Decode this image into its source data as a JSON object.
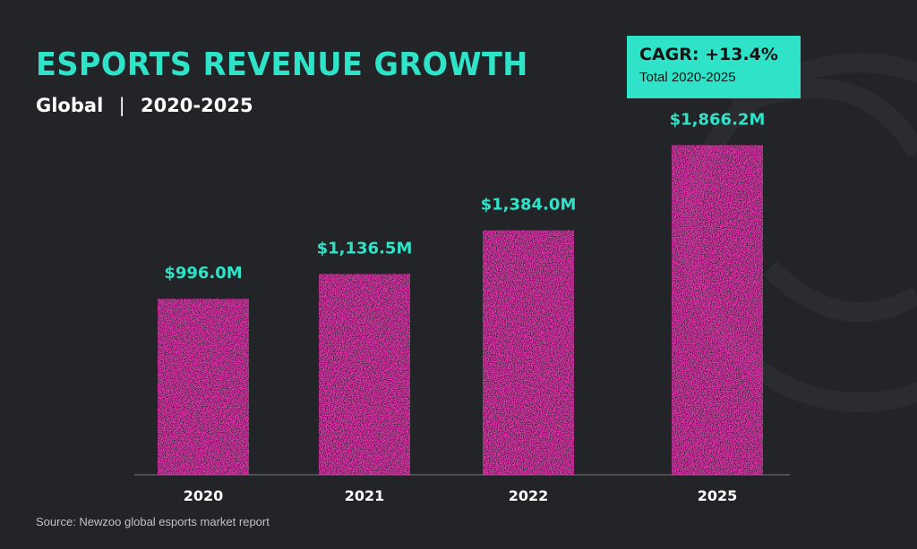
{
  "header": {
    "title": "ESPORTS REVENUE GROWTH",
    "scope": "Global",
    "separator": "|",
    "period": "2020-2025"
  },
  "callout": {
    "main": "CAGR: +13.4%",
    "sub": "Total 2020-2025"
  },
  "footer": {
    "source": "Source: Newzoo global esports market report"
  },
  "colors": {
    "background": "#232427",
    "accent": "#2fe3c8",
    "bar": "#ee32b4",
    "text": "#ffffff"
  },
  "chart_data": {
    "type": "bar",
    "categories": [
      "2020",
      "2021",
      "2022",
      "2025"
    ],
    "values": [
      996.0,
      1136.5,
      1384.0,
      1866.2
    ],
    "data_labels": [
      "$996.0M",
      "$1,136.5M",
      "$1,384.0M",
      "$1,866.2M"
    ],
    "title": "ESPORTS REVENUE GROWTH",
    "subtitle": "Global | 2020-2025",
    "ylim": [
      0,
      2050
    ],
    "grid": false,
    "legend": "none"
  }
}
